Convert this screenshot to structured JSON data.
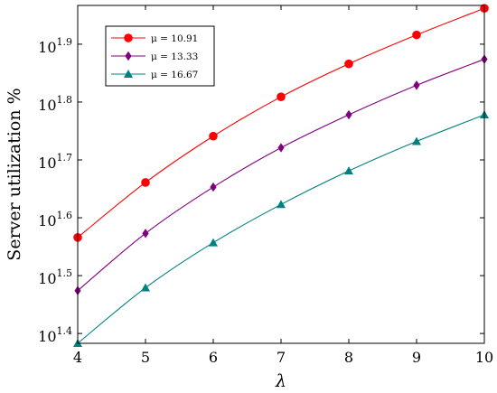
{
  "chart_data": {
    "type": "line",
    "xlabel": "λ",
    "ylabel": "Server utilization %",
    "xlim": [
      4,
      10
    ],
    "ylim_log10": [
      1.383,
      1.967
    ],
    "y_scale": "log10",
    "x_ticks": [
      4,
      5,
      6,
      7,
      8,
      9,
      10
    ],
    "y_ticks_exponent": [
      1.4,
      1.5,
      1.6,
      1.7,
      1.8,
      1.9
    ],
    "y_tick_labels": [
      {
        "base": "10",
        "exp": "1.4"
      },
      {
        "base": "10",
        "exp": "1.5"
      },
      {
        "base": "10",
        "exp": "1.6"
      },
      {
        "base": "10",
        "exp": "1.7"
      },
      {
        "base": "10",
        "exp": "1.8"
      },
      {
        "base": "10",
        "exp": "1.9"
      }
    ],
    "grid": false,
    "legend_position": "top-left",
    "x": [
      4,
      5,
      6,
      7,
      8,
      9,
      10
    ],
    "series": [
      {
        "name": "μ = 10.91",
        "color": "#ff0000",
        "marker": "circle",
        "log10_values": [
          1.566,
          1.661,
          1.741,
          1.809,
          1.866,
          1.916,
          1.962
        ]
      },
      {
        "name": "μ = 13.33",
        "color": "#800080",
        "marker": "diamond",
        "log10_values": [
          1.474,
          1.573,
          1.653,
          1.721,
          1.778,
          1.829,
          1.874
        ]
      },
      {
        "name": "μ = 16.67",
        "color": "#008080",
        "marker": "triangle",
        "log10_values": [
          1.383,
          1.479,
          1.557,
          1.623,
          1.681,
          1.732,
          1.778
        ]
      }
    ]
  }
}
